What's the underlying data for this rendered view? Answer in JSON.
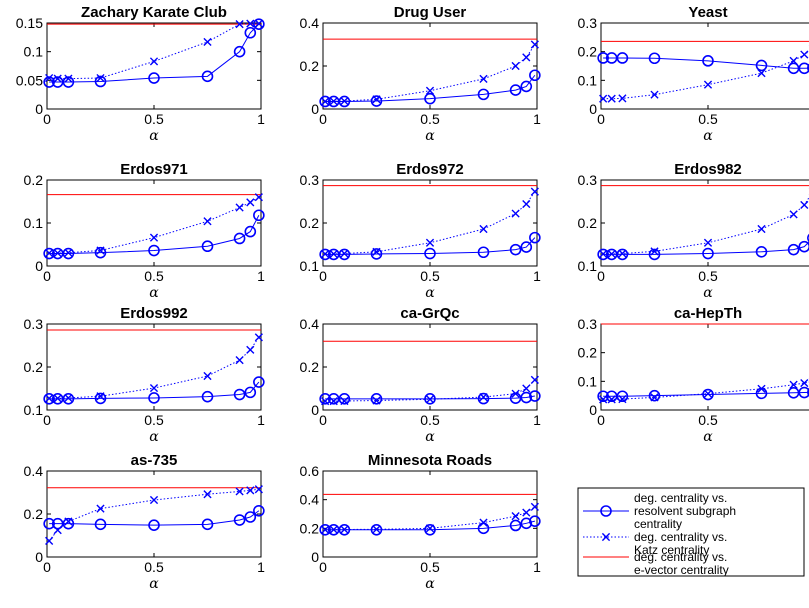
{
  "chart_data": [
    {
      "type": "line",
      "title": "Zachary Karate Club",
      "xlabel": "α",
      "xlim": [
        0,
        1
      ],
      "ylim": [
        0,
        0.15
      ],
      "xticks": [
        "0",
        "0.5",
        "1"
      ],
      "yticks": [
        "0",
        "0.05",
        "0.1",
        "0.15"
      ],
      "series": [
        {
          "x": [
            0.01,
            0.05,
            0.1,
            0.25,
            0.5,
            0.75,
            0.9,
            0.95,
            0.99
          ],
          "values": [
            0.047,
            0.047,
            0.047,
            0.048,
            0.054,
            0.057,
            0.1,
            0.133,
            0.148
          ]
        },
        {
          "x": [
            0.01,
            0.05,
            0.1,
            0.25,
            0.5,
            0.75,
            0.9,
            0.95,
            0.99
          ],
          "values": [
            0.054,
            0.053,
            0.053,
            0.054,
            0.083,
            0.117,
            0.148,
            0.149,
            0.149
          ]
        },
        {
          "x": [
            0,
            1
          ],
          "values": [
            0.148,
            0.148
          ]
        }
      ]
    },
    {
      "type": "line",
      "title": "Drug User",
      "xlabel": "α",
      "xlim": [
        0,
        1
      ],
      "ylim": [
        0,
        0.4
      ],
      "xticks": [
        "0",
        "0.5",
        "1"
      ],
      "yticks": [
        "0",
        "0.2",
        "0.4"
      ],
      "series": [
        {
          "x": [
            0.01,
            0.05,
            0.1,
            0.25,
            0.5,
            0.75,
            0.9,
            0.95,
            0.99
          ],
          "values": [
            0.035,
            0.035,
            0.035,
            0.037,
            0.048,
            0.068,
            0.088,
            0.105,
            0.157
          ]
        },
        {
          "x": [
            0.01,
            0.05,
            0.1,
            0.25,
            0.5,
            0.75,
            0.9,
            0.95,
            0.99
          ],
          "values": [
            0.035,
            0.036,
            0.037,
            0.045,
            0.085,
            0.14,
            0.2,
            0.24,
            0.3
          ]
        },
        {
          "x": [
            0,
            1
          ],
          "values": [
            0.325,
            0.325
          ]
        }
      ]
    },
    {
      "type": "line",
      "title": "Yeast",
      "xlabel": "α",
      "xlim": [
        0,
        1
      ],
      "ylim": [
        0,
        0.3
      ],
      "xticks": [
        "0",
        "0.5",
        "1"
      ],
      "yticks": [
        "0",
        "0.1",
        "0.2",
        "0.3"
      ],
      "series": [
        {
          "x": [
            0.01,
            0.05,
            0.1,
            0.25,
            0.5,
            0.75,
            0.9,
            0.95,
            0.99
          ],
          "values": [
            0.178,
            0.178,
            0.178,
            0.177,
            0.168,
            0.152,
            0.142,
            0.142,
            0.143
          ]
        },
        {
          "x": [
            0.01,
            0.05,
            0.1,
            0.25,
            0.5,
            0.75,
            0.9,
            0.95,
            0.99
          ],
          "values": [
            0.036,
            0.036,
            0.037,
            0.05,
            0.085,
            0.125,
            0.168,
            0.19,
            0.21
          ]
        },
        {
          "x": [
            0,
            1
          ],
          "values": [
            0.236,
            0.236
          ]
        }
      ]
    },
    {
      "type": "line",
      "title": "Erdos971",
      "xlabel": "α",
      "xlim": [
        0,
        1
      ],
      "ylim": [
        0,
        0.2
      ],
      "xticks": [
        "0",
        "0.5",
        "1"
      ],
      "yticks": [
        "0",
        "0.1",
        "0.2"
      ],
      "series": [
        {
          "x": [
            0.01,
            0.05,
            0.1,
            0.25,
            0.5,
            0.75,
            0.9,
            0.95,
            0.99
          ],
          "values": [
            0.029,
            0.029,
            0.029,
            0.031,
            0.036,
            0.046,
            0.064,
            0.08,
            0.118
          ]
        },
        {
          "x": [
            0.01,
            0.05,
            0.1,
            0.25,
            0.5,
            0.75,
            0.9,
            0.95,
            0.99
          ],
          "values": [
            0.03,
            0.03,
            0.031,
            0.036,
            0.066,
            0.104,
            0.136,
            0.148,
            0.16
          ]
        },
        {
          "x": [
            0,
            1
          ],
          "values": [
            0.166,
            0.166
          ]
        }
      ]
    },
    {
      "type": "line",
      "title": "Erdos972",
      "xlabel": "α",
      "xlim": [
        0,
        1
      ],
      "ylim": [
        0.1,
        0.3
      ],
      "xticks": [
        "0",
        "0.5",
        "1"
      ],
      "yticks": [
        "0.1",
        "0.2",
        "0.3"
      ],
      "series": [
        {
          "x": [
            0.01,
            0.05,
            0.1,
            0.25,
            0.5,
            0.75,
            0.9,
            0.95,
            0.99
          ],
          "values": [
            0.127,
            0.127,
            0.127,
            0.128,
            0.129,
            0.132,
            0.138,
            0.144,
            0.166
          ]
        },
        {
          "x": [
            0.01,
            0.05,
            0.1,
            0.25,
            0.5,
            0.75,
            0.9,
            0.95,
            0.99
          ],
          "values": [
            0.128,
            0.128,
            0.129,
            0.133,
            0.154,
            0.186,
            0.222,
            0.244,
            0.273
          ]
        },
        {
          "x": [
            0,
            1
          ],
          "values": [
            0.287,
            0.287
          ]
        }
      ]
    },
    {
      "type": "line",
      "title": "Erdos982",
      "xlabel": "α",
      "xlim": [
        0,
        1
      ],
      "ylim": [
        0.1,
        0.3
      ],
      "xticks": [
        "0",
        "0.5",
        "1"
      ],
      "yticks": [
        "0.1",
        "0.2",
        "0.3"
      ],
      "series": [
        {
          "x": [
            0.01,
            0.05,
            0.1,
            0.25,
            0.5,
            0.75,
            0.9,
            0.95,
            0.99
          ],
          "values": [
            0.127,
            0.127,
            0.127,
            0.127,
            0.129,
            0.133,
            0.138,
            0.145,
            0.165
          ]
        },
        {
          "x": [
            0.01,
            0.05,
            0.1,
            0.25,
            0.5,
            0.75,
            0.9,
            0.95,
            0.99
          ],
          "values": [
            0.128,
            0.128,
            0.129,
            0.134,
            0.154,
            0.186,
            0.22,
            0.242,
            0.273
          ]
        },
        {
          "x": [
            0,
            1
          ],
          "values": [
            0.287,
            0.287
          ]
        }
      ]
    },
    {
      "type": "line",
      "title": "Erdos992",
      "xlabel": "α",
      "xlim": [
        0,
        1
      ],
      "ylim": [
        0.1,
        0.3
      ],
      "xticks": [
        "0",
        "0.5",
        "1"
      ],
      "yticks": [
        "0.1",
        "0.2",
        "0.3"
      ],
      "series": [
        {
          "x": [
            0.01,
            0.05,
            0.1,
            0.25,
            0.5,
            0.75,
            0.9,
            0.95,
            0.99
          ],
          "values": [
            0.126,
            0.126,
            0.126,
            0.127,
            0.128,
            0.131,
            0.136,
            0.141,
            0.165
          ]
        },
        {
          "x": [
            0.01,
            0.05,
            0.1,
            0.25,
            0.5,
            0.75,
            0.9,
            0.95,
            0.99
          ],
          "values": [
            0.127,
            0.127,
            0.128,
            0.132,
            0.151,
            0.179,
            0.216,
            0.24,
            0.269
          ]
        },
        {
          "x": [
            0,
            1
          ],
          "values": [
            0.286,
            0.286
          ]
        }
      ]
    },
    {
      "type": "line",
      "title": "ca-GrQc",
      "xlabel": "α",
      "xlim": [
        0,
        1
      ],
      "ylim": [
        0,
        0.4
      ],
      "xticks": [
        "0",
        "0.5",
        "1"
      ],
      "yticks": [
        "0",
        "0.2",
        "0.4"
      ],
      "series": [
        {
          "x": [
            0.01,
            0.05,
            0.1,
            0.25,
            0.5,
            0.75,
            0.9,
            0.95,
            0.99
          ],
          "values": [
            0.052,
            0.052,
            0.052,
            0.052,
            0.052,
            0.053,
            0.055,
            0.058,
            0.065
          ]
        },
        {
          "x": [
            0.01,
            0.05,
            0.1,
            0.25,
            0.5,
            0.75,
            0.9,
            0.95,
            0.99
          ],
          "values": [
            0.041,
            0.041,
            0.042,
            0.044,
            0.05,
            0.06,
            0.076,
            0.1,
            0.14
          ]
        },
        {
          "x": [
            0,
            1
          ],
          "values": [
            0.32,
            0.32
          ]
        }
      ]
    },
    {
      "type": "line",
      "title": "ca-HepTh",
      "xlabel": "α",
      "xlim": [
        0,
        1
      ],
      "ylim": [
        0,
        0.3
      ],
      "xticks": [
        "0",
        "0.5",
        "1"
      ],
      "yticks": [
        "0",
        "0.1",
        "0.2",
        "0.3"
      ],
      "series": [
        {
          "x": [
            0.01,
            0.05,
            0.1,
            0.25,
            0.5,
            0.75,
            0.9,
            0.95,
            0.99
          ],
          "values": [
            0.048,
            0.048,
            0.048,
            0.05,
            0.054,
            0.058,
            0.06,
            0.061,
            0.062
          ]
        },
        {
          "x": [
            0.01,
            0.05,
            0.1,
            0.25,
            0.5,
            0.75,
            0.9,
            0.95,
            0.99
          ],
          "values": [
            0.037,
            0.037,
            0.038,
            0.044,
            0.057,
            0.074,
            0.088,
            0.094,
            0.1
          ]
        },
        {
          "x": [
            0,
            1
          ],
          "values": [
            0.3,
            0.3
          ]
        }
      ]
    },
    {
      "type": "line",
      "title": "as-735",
      "xlabel": "α",
      "xlim": [
        0,
        1
      ],
      "ylim": [
        0,
        0.4
      ],
      "xticks": [
        "0",
        "0.5",
        "1"
      ],
      "yticks": [
        "0",
        "0.2",
        "0.4"
      ],
      "series": [
        {
          "x": [
            0.01,
            0.05,
            0.1,
            0.25,
            0.5,
            0.75,
            0.9,
            0.95,
            0.99
          ],
          "values": [
            0.155,
            0.155,
            0.155,
            0.152,
            0.148,
            0.152,
            0.172,
            0.186,
            0.215
          ]
        },
        {
          "x": [
            0.01,
            0.05,
            0.1,
            0.25,
            0.5,
            0.75,
            0.9,
            0.95,
            0.99
          ],
          "values": [
            0.075,
            0.125,
            0.165,
            0.225,
            0.265,
            0.292,
            0.305,
            0.31,
            0.315
          ]
        },
        {
          "x": [
            0,
            1
          ],
          "values": [
            0.322,
            0.322
          ]
        }
      ]
    },
    {
      "type": "line",
      "title": "Minnesota Roads",
      "xlabel": "α",
      "xlim": [
        0,
        1
      ],
      "ylim": [
        0,
        0.6
      ],
      "xticks": [
        "0",
        "0.5",
        "1"
      ],
      "yticks": [
        "0",
        "0.2",
        "0.4",
        "0.6"
      ],
      "series": [
        {
          "x": [
            0.01,
            0.05,
            0.1,
            0.25,
            0.5,
            0.75,
            0.9,
            0.95,
            0.99
          ],
          "values": [
            0.19,
            0.19,
            0.19,
            0.19,
            0.19,
            0.2,
            0.22,
            0.235,
            0.25
          ]
        },
        {
          "x": [
            0.01,
            0.05,
            0.1,
            0.25,
            0.5,
            0.75,
            0.9,
            0.95,
            0.99
          ],
          "values": [
            0.19,
            0.191,
            0.192,
            0.193,
            0.2,
            0.24,
            0.285,
            0.31,
            0.35
          ]
        },
        {
          "x": [
            0,
            1
          ],
          "values": [
            0.437,
            0.437
          ]
        }
      ]
    }
  ],
  "legend": {
    "placement": "bottom-right",
    "entries": [
      {
        "lines": [
          "deg. centrality vs.",
          "resolvent subgraph",
          "centrality"
        ],
        "marker": "circle",
        "style": "solid",
        "color": "#0000ff"
      },
      {
        "lines": [
          "deg. centrality vs.",
          "Katz centrality"
        ],
        "marker": "x",
        "style": "dotted",
        "color": "#0000ff"
      },
      {
        "lines": [
          "deg. centrality vs.",
          "e-vector centrality"
        ],
        "marker": "none",
        "style": "solid",
        "color": "#ff0000"
      }
    ]
  },
  "colors": {
    "series_blue": "#0000ff",
    "reference_red": "#ff0000",
    "axes": "#000000"
  }
}
